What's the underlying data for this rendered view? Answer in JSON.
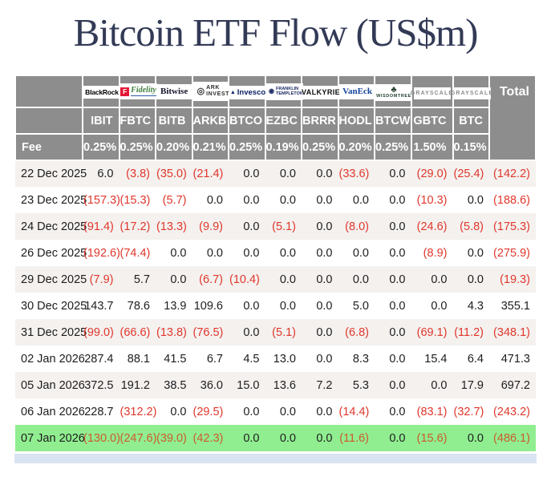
{
  "title": "Bitcoin ETF Flow (US$m)",
  "colors": {
    "title_text": "#333a56",
    "header_bg": "#8e8d8d",
    "negative_value": "#e0372c",
    "highlight_row_bg": "#90ee90",
    "stripe_row_bg": "#f4f1ef",
    "partial_next_row_bg": "#d9e4f2"
  },
  "table": {
    "fee_label": "Fee",
    "total_label": "Total",
    "issuers": [
      {
        "name": "BlackRock",
        "label": "BlackRock",
        "icon": "",
        "brand": "blackrock"
      },
      {
        "name": "Fidelity",
        "label": "Fidelity",
        "icon": "F",
        "brand": "fidelity"
      },
      {
        "name": "Bitwise",
        "label": "Bitwise",
        "icon": "",
        "brand": "bitwise"
      },
      {
        "name": "ARK Invest",
        "label": "ARK INVEST",
        "icon": "◎",
        "brand": "ark"
      },
      {
        "name": "Invesco",
        "label": "Invesco",
        "icon": "▲",
        "brand": "invesco"
      },
      {
        "name": "Franklin Templeton",
        "label": "FRANKLIN TEMPLETON",
        "icon": "◉",
        "brand": "franklin"
      },
      {
        "name": "Valkyrie",
        "label": "VALKYRIE",
        "icon": "",
        "brand": "valkyrie"
      },
      {
        "name": "VanEck",
        "label": "VanEck",
        "icon": "",
        "brand": "vaneck"
      },
      {
        "name": "WisdomTree",
        "label": "WISDOMTREE",
        "icon": "♣",
        "brand": "wisdomtree"
      },
      {
        "name": "Grayscale",
        "label": "GRAYSCALE",
        "icon": "",
        "brand": "grayscale"
      },
      {
        "name": "Grayscale",
        "label": "GRAYSCALE",
        "icon": "",
        "brand": "grayscale"
      }
    ],
    "tickers": [
      "IBIT",
      "FBTC",
      "BITB",
      "ARKB",
      "BTCO",
      "EZBC",
      "BRRR",
      "HODL",
      "BTCW",
      "GBTC",
      "BTC"
    ],
    "fees": [
      "0.25%",
      "0.25%",
      "0.20%",
      "0.21%",
      "0.25%",
      "0.19%",
      "0.25%",
      "0.20%",
      "0.25%",
      "1.50%",
      "0.15%"
    ],
    "rows": [
      {
        "date": "22 Dec 2025",
        "values": [
          "6.0",
          "(3.8)",
          "(35.0)",
          "(21.4)",
          "0.0",
          "0.0",
          "0.0",
          "(33.6)",
          "0.0",
          "(29.0)",
          "(25.4)"
        ],
        "total": "(142.2)",
        "highlight": false
      },
      {
        "date": "23 Dec 2025",
        "values": [
          "(157.3)",
          "(15.3)",
          "(5.7)",
          "0.0",
          "0.0",
          "0.0",
          "0.0",
          "0.0",
          "0.0",
          "(10.3)",
          "0.0"
        ],
        "total": "(188.6)",
        "highlight": false
      },
      {
        "date": "24 Dec 2025",
        "values": [
          "(91.4)",
          "(17.2)",
          "(13.3)",
          "(9.9)",
          "0.0",
          "(5.1)",
          "0.0",
          "(8.0)",
          "0.0",
          "(24.6)",
          "(5.8)"
        ],
        "total": "(175.3)",
        "highlight": false
      },
      {
        "date": "26 Dec 2025",
        "values": [
          "(192.6)",
          "(74.4)",
          "0.0",
          "0.0",
          "0.0",
          "0.0",
          "0.0",
          "0.0",
          "0.0",
          "(8.9)",
          "0.0"
        ],
        "total": "(275.9)",
        "highlight": false
      },
      {
        "date": "29 Dec 2025",
        "values": [
          "(7.9)",
          "5.7",
          "0.0",
          "(6.7)",
          "(10.4)",
          "0.0",
          "0.0",
          "0.0",
          "0.0",
          "0.0",
          "0.0"
        ],
        "total": "(19.3)",
        "highlight": false
      },
      {
        "date": "30 Dec 2025",
        "values": [
          "143.7",
          "78.6",
          "13.9",
          "109.6",
          "0.0",
          "0.0",
          "0.0",
          "5.0",
          "0.0",
          "0.0",
          "4.3"
        ],
        "total": "355.1",
        "highlight": false
      },
      {
        "date": "31 Dec 2025",
        "values": [
          "(99.0)",
          "(66.6)",
          "(13.8)",
          "(76.5)",
          "0.0",
          "(5.1)",
          "0.0",
          "(6.8)",
          "0.0",
          "(69.1)",
          "(11.2)"
        ],
        "total": "(348.1)",
        "highlight": false
      },
      {
        "date": "02 Jan 2026",
        "values": [
          "287.4",
          "88.1",
          "41.5",
          "6.7",
          "4.5",
          "13.0",
          "0.0",
          "8.3",
          "0.0",
          "15.4",
          "6.4"
        ],
        "total": "471.3",
        "highlight": false
      },
      {
        "date": "05 Jan 2026",
        "values": [
          "372.5",
          "191.2",
          "38.5",
          "36.0",
          "15.0",
          "13.6",
          "7.2",
          "5.3",
          "0.0",
          "0.0",
          "17.9"
        ],
        "total": "697.2",
        "highlight": false
      },
      {
        "date": "06 Jan 2026",
        "values": [
          "228.7",
          "(312.2)",
          "0.0",
          "(29.5)",
          "0.0",
          "0.0",
          "0.0",
          "(14.4)",
          "0.0",
          "(83.1)",
          "(32.7)"
        ],
        "total": "(243.2)",
        "highlight": false
      },
      {
        "date": "07 Jan 2026",
        "values": [
          "(130.0)",
          "(247.6)",
          "(39.0)",
          "(42.3)",
          "0.0",
          "0.0",
          "0.0",
          "(11.6)",
          "0.0",
          "(15.6)",
          "0.0"
        ],
        "total": "(486.1)",
        "highlight": true
      }
    ]
  },
  "chart_data": {
    "type": "table",
    "title": "Bitcoin ETF Flow (US$m)",
    "columns": [
      "IBIT",
      "FBTC",
      "BITB",
      "ARKB",
      "BTCO",
      "EZBC",
      "BRRR",
      "HODL",
      "BTCW",
      "GBTC",
      "BTC",
      "Total"
    ],
    "fees_percent": [
      0.25,
      0.25,
      0.2,
      0.21,
      0.25,
      0.19,
      0.25,
      0.2,
      0.25,
      1.5,
      0.15
    ],
    "categories": [
      "22 Dec 2025",
      "23 Dec 2025",
      "24 Dec 2025",
      "26 Dec 2025",
      "29 Dec 2025",
      "30 Dec 2025",
      "31 Dec 2025",
      "02 Jan 2026",
      "05 Jan 2026",
      "06 Jan 2026",
      "07 Jan 2026"
    ],
    "series": [
      {
        "name": "IBIT",
        "values": [
          6.0,
          -157.3,
          -91.4,
          -192.6,
          -7.9,
          143.7,
          -99.0,
          287.4,
          372.5,
          228.7,
          -130.0
        ]
      },
      {
        "name": "FBTC",
        "values": [
          -3.8,
          -15.3,
          -17.2,
          -74.4,
          5.7,
          78.6,
          -66.6,
          88.1,
          191.2,
          -312.2,
          -247.6
        ]
      },
      {
        "name": "BITB",
        "values": [
          -35.0,
          -5.7,
          -13.3,
          0.0,
          0.0,
          13.9,
          -13.8,
          41.5,
          38.5,
          0.0,
          -39.0
        ]
      },
      {
        "name": "ARKB",
        "values": [
          -21.4,
          0.0,
          -9.9,
          0.0,
          -6.7,
          109.6,
          -76.5,
          6.7,
          36.0,
          -29.5,
          -42.3
        ]
      },
      {
        "name": "BTCO",
        "values": [
          0.0,
          0.0,
          0.0,
          0.0,
          -10.4,
          0.0,
          0.0,
          4.5,
          15.0,
          0.0,
          0.0
        ]
      },
      {
        "name": "EZBC",
        "values": [
          0.0,
          0.0,
          -5.1,
          0.0,
          0.0,
          0.0,
          -5.1,
          13.0,
          13.6,
          0.0,
          0.0
        ]
      },
      {
        "name": "BRRR",
        "values": [
          0.0,
          0.0,
          0.0,
          0.0,
          0.0,
          0.0,
          0.0,
          0.0,
          7.2,
          0.0,
          0.0
        ]
      },
      {
        "name": "HODL",
        "values": [
          -33.6,
          0.0,
          -8.0,
          0.0,
          0.0,
          5.0,
          -6.8,
          8.3,
          5.3,
          -14.4,
          -11.6
        ]
      },
      {
        "name": "BTCW",
        "values": [
          0.0,
          0.0,
          0.0,
          0.0,
          0.0,
          0.0,
          0.0,
          0.0,
          0.0,
          0.0,
          0.0
        ]
      },
      {
        "name": "GBTC",
        "values": [
          -29.0,
          -10.3,
          -24.6,
          -8.9,
          0.0,
          0.0,
          -69.1,
          15.4,
          0.0,
          -83.1,
          -15.6
        ]
      },
      {
        "name": "BTC",
        "values": [
          -25.4,
          0.0,
          -5.8,
          0.0,
          0.0,
          4.3,
          -11.2,
          6.4,
          17.9,
          -32.7,
          0.0
        ]
      },
      {
        "name": "Total",
        "values": [
          -142.2,
          -188.6,
          -175.3,
          -275.9,
          -19.3,
          355.1,
          -348.1,
          471.3,
          697.2,
          -243.2,
          -486.1
        ]
      }
    ]
  }
}
